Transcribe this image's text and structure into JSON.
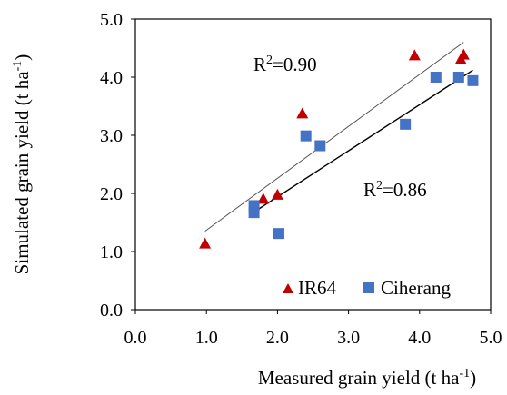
{
  "chart_data": {
    "type": "scatter",
    "xlabel": "Measured grain yield (t ha-1)",
    "xlabel_main": "Measured grain yield (t ha",
    "xlabel_sup": "-1",
    "xlabel_end": ")",
    "ylabel": "Simulated grain yield (t ha-1)",
    "ylabel_main": "Simulated grain yield  (t ha",
    "ylabel_sup": "-1",
    "ylabel_end": ")",
    "xlim": [
      0,
      5
    ],
    "ylim": [
      0,
      5
    ],
    "xticks": [
      "0.0",
      "1.0",
      "2.0",
      "3.0",
      "4.0",
      "5.0"
    ],
    "yticks": [
      "0.0",
      "1.0",
      "2.0",
      "3.0",
      "4.0",
      "5.0"
    ],
    "grid": false,
    "legend_position": "bottom-right",
    "series": [
      {
        "name": "IR64",
        "marker": "triangle",
        "color": "#C00000",
        "points": [
          [
            0.98,
            1.13
          ],
          [
            1.8,
            1.9
          ],
          [
            2.0,
            1.97
          ],
          [
            2.35,
            3.37
          ],
          [
            3.93,
            4.37
          ],
          [
            4.58,
            4.3
          ],
          [
            4.62,
            4.38
          ]
        ],
        "fit": {
          "r2_label": "R",
          "r2_sup": "2",
          "r2_value": "=0.90",
          "x": [
            0.98,
            4.62
          ],
          "y": [
            1.35,
            4.6
          ]
        }
      },
      {
        "name": "Ciherang",
        "marker": "square",
        "color": "#4472C4",
        "points": [
          [
            1.67,
            1.67
          ],
          [
            1.67,
            1.79
          ],
          [
            2.02,
            1.31
          ],
          [
            2.4,
            2.99
          ],
          [
            2.6,
            2.82
          ],
          [
            3.8,
            3.19
          ],
          [
            4.23,
            4.0
          ],
          [
            4.55,
            4.0
          ],
          [
            4.75,
            3.94
          ]
        ],
        "fit": {
          "r2_label": "R",
          "r2_sup": "2",
          "r2_value": "=0.86",
          "x": [
            1.67,
            4.75
          ],
          "y": [
            1.68,
            4.12
          ]
        }
      }
    ]
  }
}
